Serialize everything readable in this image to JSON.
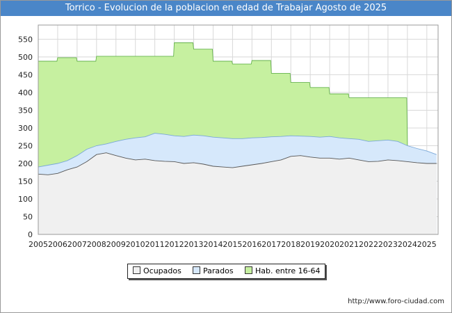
{
  "title": "Torrico - Evolucion de la poblacion en edad de Trabajar Agosto de 2025",
  "footer_url": "http://www.foro-ciudad.com",
  "legend": [
    {
      "label": "Ocupados",
      "color": "#f0f0f0"
    },
    {
      "label": "Parados",
      "color": "#d6e8fb"
    },
    {
      "label": "Hab. entre 16-64",
      "color": "#c6f0a0"
    }
  ],
  "chart_data": {
    "type": "area",
    "title": "Torrico - Evolucion de la poblacion en edad de Trabajar Agosto de 2025",
    "xlabel": "",
    "ylabel": "",
    "xlim": [
      2005,
      2025.58
    ],
    "ylim": [
      0,
      590
    ],
    "grid": true,
    "yticks": [
      0,
      50,
      100,
      150,
      200,
      250,
      300,
      350,
      400,
      450,
      500,
      550
    ],
    "xticks": [
      "2005",
      "2006",
      "2007",
      "2008",
      "2009",
      "2010",
      "2011",
      "2012",
      "2013",
      "2014",
      "2015",
      "2016",
      "2017",
      "2018",
      "2019",
      "2020",
      "2021",
      "2022",
      "2023",
      "2024",
      "2025"
    ],
    "series": [
      {
        "name": "Hab. entre 16-64",
        "color": "#c6f0a0",
        "x": [
          2005,
          2006,
          2007,
          2008,
          2009,
          2010,
          2011,
          2012,
          2013,
          2014,
          2015,
          2016,
          2017,
          2018,
          2019,
          2020,
          2021,
          2022,
          2023,
          2024
        ],
        "values": [
          488,
          498,
          488,
          502,
          502,
          502,
          502,
          540,
          522,
          488,
          480,
          490,
          454,
          428,
          414,
          396,
          385,
          385,
          385,
          250
        ]
      },
      {
        "name": "Parados",
        "color": "#d6e8fb",
        "x": [
          2005,
          2005.5,
          2006,
          2006.5,
          2007,
          2007.5,
          2008,
          2008.5,
          2009,
          2009.5,
          2010,
          2010.5,
          2011,
          2011.5,
          2012,
          2012.5,
          2013,
          2013.5,
          2014,
          2014.5,
          2015,
          2015.5,
          2016,
          2016.5,
          2017,
          2017.5,
          2018,
          2018.5,
          2019,
          2019.5,
          2020,
          2020.5,
          2021,
          2021.5,
          2022,
          2022.5,
          2023,
          2023.5,
          2024,
          2024.5,
          2025,
          2025.5
        ],
        "values": [
          190,
          195,
          200,
          208,
          222,
          240,
          250,
          255,
          262,
          268,
          272,
          275,
          285,
          282,
          278,
          276,
          280,
          278,
          274,
          272,
          270,
          270,
          272,
          273,
          275,
          276,
          278,
          277,
          276,
          274,
          276,
          272,
          270,
          268,
          262,
          264,
          266,
          262,
          250,
          242,
          235,
          225
        ]
      },
      {
        "name": "Ocupados",
        "color": "#f0f0f0",
        "x": [
          2005,
          2005.5,
          2006,
          2006.5,
          2007,
          2007.5,
          2008,
          2008.5,
          2009,
          2009.5,
          2010,
          2010.5,
          2011,
          2011.5,
          2012,
          2012.5,
          2013,
          2013.5,
          2014,
          2014.5,
          2015,
          2015.5,
          2016,
          2016.5,
          2017,
          2017.5,
          2018,
          2018.5,
          2019,
          2019.5,
          2020,
          2020.5,
          2021,
          2021.5,
          2022,
          2022.5,
          2023,
          2023.5,
          2024,
          2024.5,
          2025,
          2025.5
        ],
        "values": [
          170,
          168,
          172,
          182,
          190,
          205,
          225,
          230,
          222,
          215,
          210,
          212,
          208,
          206,
          205,
          200,
          202,
          198,
          192,
          190,
          188,
          192,
          196,
          200,
          205,
          210,
          220,
          222,
          218,
          215,
          215,
          212,
          215,
          210,
          205,
          206,
          210,
          208,
          205,
          202,
          200,
          200
        ]
      }
    ]
  }
}
